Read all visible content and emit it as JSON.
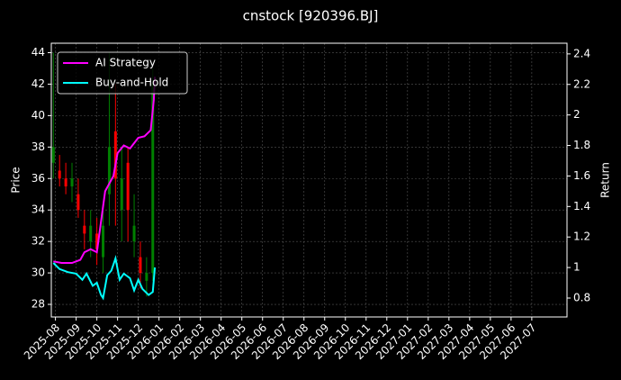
{
  "chart_data": {
    "type": "candlestick-returns",
    "title": "cnstock [920396.BJ]",
    "ylabel": "Price",
    "y2label": "Return",
    "xlim": [
      -0.2,
      24.7
    ],
    "xticks": [
      {
        "value": 0,
        "label": "2025-08"
      },
      {
        "value": 1,
        "label": "2025-09"
      },
      {
        "value": 2,
        "label": "2025-10"
      },
      {
        "value": 3,
        "label": "2025-11"
      },
      {
        "value": 4,
        "label": "2025-12"
      },
      {
        "value": 5,
        "label": "2026-01"
      },
      {
        "value": 6,
        "label": "2026-02"
      },
      {
        "value": 7,
        "label": "2026-03"
      },
      {
        "value": 8,
        "label": "2026-04"
      },
      {
        "value": 9,
        "label": "2026-05"
      },
      {
        "value": 10,
        "label": "2026-06"
      },
      {
        "value": 11,
        "label": "2026-07"
      },
      {
        "value": 12,
        "label": "2026-08"
      },
      {
        "value": 13,
        "label": "2026-09"
      },
      {
        "value": 14,
        "label": "2026-10"
      },
      {
        "value": 15,
        "label": "2026-11"
      },
      {
        "value": 16,
        "label": "2026-12"
      },
      {
        "value": 17,
        "label": "2027-01"
      },
      {
        "value": 18,
        "label": "2027-02"
      },
      {
        "value": 19,
        "label": "2027-03"
      },
      {
        "value": 20,
        "label": "2027-04"
      },
      {
        "value": 21,
        "label": "2027-05"
      },
      {
        "value": 22,
        "label": "2027-06"
      },
      {
        "value": 23,
        "label": "2027-07"
      }
    ],
    "ylim": [
      27.2,
      44.6
    ],
    "yticks": [
      28,
      30,
      32,
      34,
      36,
      38,
      40,
      42,
      44
    ],
    "y2lim": [
      0.676,
      2.47
    ],
    "y2ticks": [
      0.8,
      1.0,
      1.2,
      1.4,
      1.6,
      1.8,
      2.0,
      2.2,
      2.4
    ],
    "grid": true,
    "legend": "upper left",
    "candles": {
      "up_color": "#008000",
      "down_color": "#ff0000",
      "x": [
        -0.1,
        0.2,
        0.5,
        0.8,
        1.1,
        1.4,
        1.7,
        2.0,
        2.3,
        2.6,
        2.9,
        3.2,
        3.5,
        3.8,
        4.1,
        4.4,
        4.7
      ],
      "open": [
        37,
        36.5,
        36,
        35.5,
        35,
        33,
        32,
        32.5,
        31,
        35,
        39,
        34,
        37,
        32,
        31,
        29.5,
        30
      ],
      "close": [
        38,
        36,
        35.5,
        36,
        34,
        32.5,
        33,
        31.5,
        33,
        38,
        36,
        36,
        34,
        33,
        30,
        30,
        42
      ],
      "low": [
        36,
        35.5,
        35,
        34.5,
        33.5,
        31.5,
        31,
        30.5,
        30,
        33,
        33,
        32,
        32,
        31,
        29,
        28.5,
        29.5
      ],
      "high": [
        44,
        37.5,
        37,
        37,
        36,
        34,
        34,
        33.5,
        34,
        44,
        42,
        38,
        38,
        35,
        32,
        31,
        43
      ]
    },
    "series": [
      {
        "name": "AI Strategy",
        "color": "#ff00ff",
        "axis": "y2",
        "x": [
          -0.1,
          0.3,
          0.8,
          1.2,
          1.4,
          1.7,
          2.0,
          2.2,
          2.4,
          2.6,
          2.8,
          3.0,
          3.3,
          3.6,
          4.0,
          4.3,
          4.6,
          4.75,
          4.8
        ],
        "values": [
          1.04,
          1.03,
          1.03,
          1.05,
          1.1,
          1.12,
          1.1,
          1.3,
          1.5,
          1.55,
          1.6,
          1.75,
          1.8,
          1.78,
          1.85,
          1.86,
          1.9,
          2.1,
          2.25
        ]
      },
      {
        "name": "Buy-and-Hold",
        "color": "#00ffff",
        "axis": "y2",
        "x": [
          -0.1,
          0.2,
          0.6,
          1.0,
          1.3,
          1.5,
          1.8,
          2.0,
          2.2,
          2.3,
          2.5,
          2.7,
          2.9,
          3.1,
          3.3,
          3.6,
          3.8,
          4.0,
          4.2,
          4.5,
          4.7,
          4.8
        ],
        "values": [
          1.03,
          0.99,
          0.97,
          0.96,
          0.92,
          0.96,
          0.88,
          0.9,
          0.82,
          0.8,
          0.95,
          0.98,
          1.06,
          0.92,
          0.96,
          0.93,
          0.85,
          0.92,
          0.86,
          0.82,
          0.84,
          1.0
        ]
      }
    ]
  }
}
